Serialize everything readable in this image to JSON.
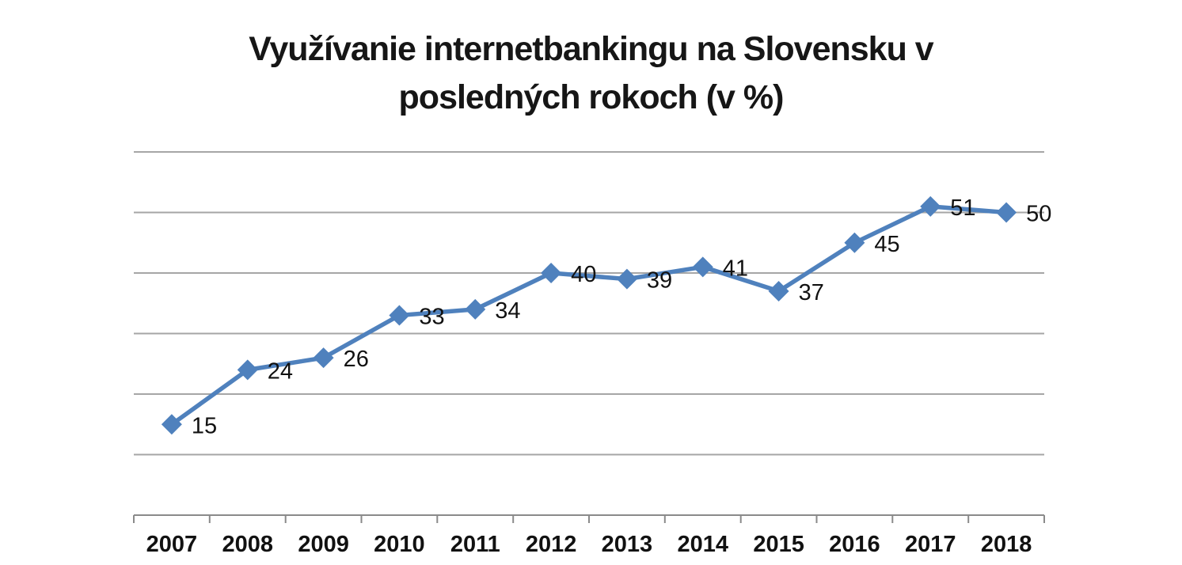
{
  "chart_data": {
    "type": "line",
    "title": "Využívanie internetbankingu na Slovensku v posledných rokoch (v %)",
    "title_lines": [
      "Využívanie internetbankingu na Slovensku v",
      "posledných rokoch (v %)"
    ],
    "categories": [
      "2007",
      "2008",
      "2009",
      "2010",
      "2011",
      "2012",
      "2013",
      "2014",
      "2015",
      "2016",
      "2017",
      "2018"
    ],
    "values": [
      15,
      24,
      26,
      33,
      34,
      40,
      39,
      41,
      37,
      45,
      51,
      50
    ],
    "xlabel": "",
    "ylabel": "",
    "ylim": [
      0,
      60
    ],
    "grid_step": 10,
    "grid": "horizontal-only",
    "y_axis_labels_visible": false,
    "legend": "none",
    "data_labels_position": "right",
    "marker_shape": "diamond",
    "colors": {
      "series_line": "#4F81BD",
      "marker_fill": "#4F81BD",
      "gridline": "#A6A6A6",
      "axis_line": "#8A8A8A",
      "title_text": "#161616",
      "label_text": "#111111",
      "background": "#FFFFFF"
    }
  }
}
